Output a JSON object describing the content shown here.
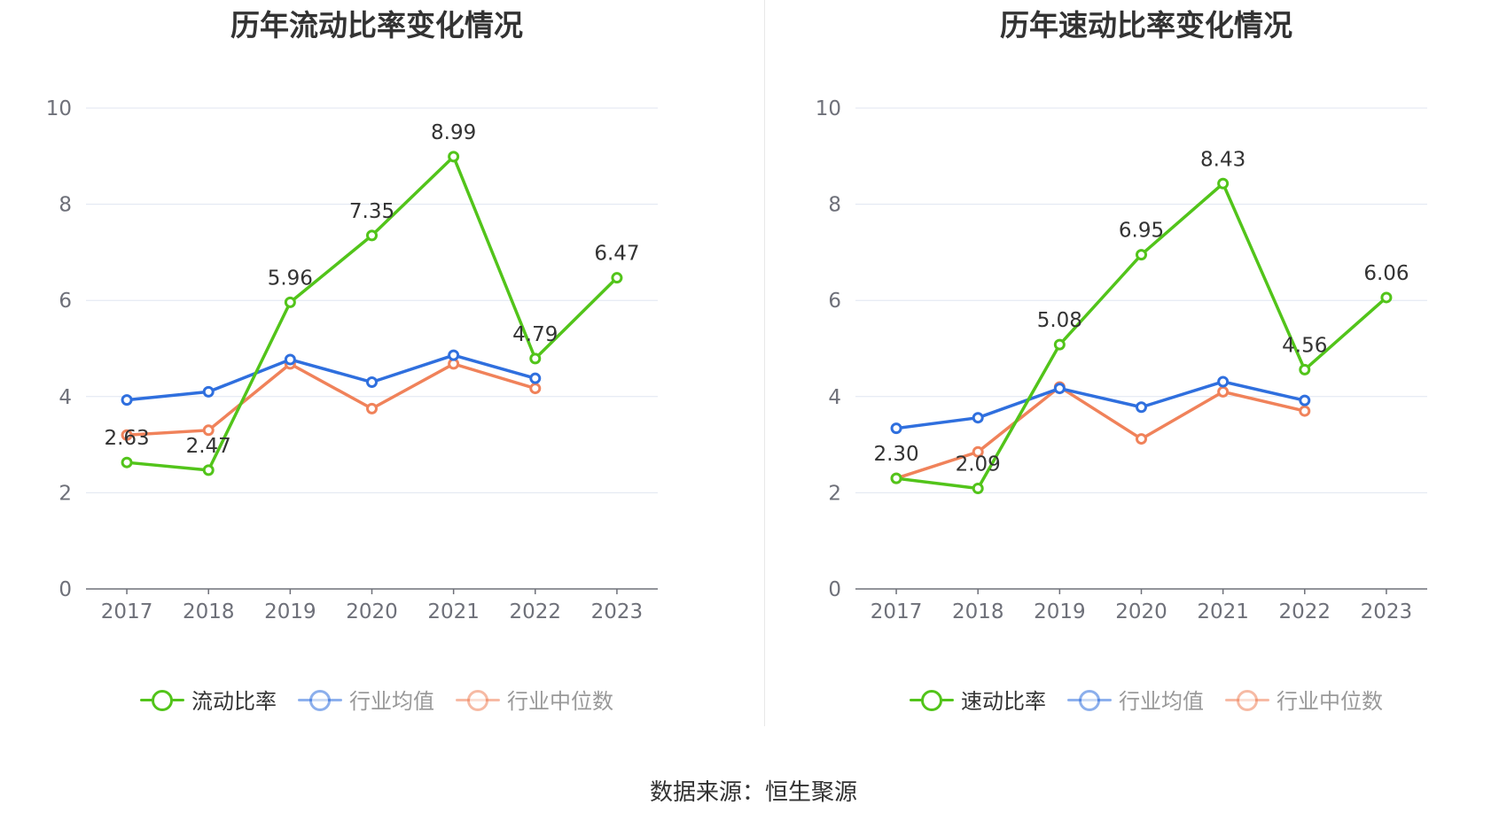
{
  "chart_data": [
    {
      "type": "line",
      "title": "历年流动比率变化情况",
      "categories": [
        "2017",
        "2018",
        "2019",
        "2020",
        "2021",
        "2022",
        "2023"
      ],
      "ylim": [
        0,
        10
      ],
      "yticks": [
        0,
        2,
        4,
        6,
        8,
        10
      ],
      "grid": true,
      "legend_position": "bottom",
      "series": [
        {
          "name": "流动比率",
          "color": "#52c41a",
          "values": [
            2.63,
            2.47,
            5.96,
            7.35,
            8.99,
            4.79,
            6.47
          ],
          "labels": [
            "2.63",
            "2.47",
            "5.96",
            "7.35",
            "8.99",
            "4.79",
            "6.47"
          ]
        },
        {
          "name": "行业均值",
          "color": "#2f6fde",
          "values": [
            3.93,
            4.1,
            4.77,
            4.3,
            4.86,
            4.38,
            null
          ]
        },
        {
          "name": "行业中位数",
          "color": "#f0825a",
          "values": [
            3.2,
            3.3,
            4.68,
            3.75,
            4.68,
            4.17,
            null
          ]
        }
      ]
    },
    {
      "type": "line",
      "title": "历年速动比率变化情况",
      "categories": [
        "2017",
        "2018",
        "2019",
        "2020",
        "2021",
        "2022",
        "2023"
      ],
      "ylim": [
        0,
        10
      ],
      "yticks": [
        0,
        2,
        4,
        6,
        8,
        10
      ],
      "grid": true,
      "legend_position": "bottom",
      "series": [
        {
          "name": "速动比率",
          "color": "#52c41a",
          "values": [
            2.3,
            2.09,
            5.08,
            6.95,
            8.43,
            4.56,
            6.06
          ],
          "labels": [
            "2.30",
            "2.09",
            "5.08",
            "6.95",
            "8.43",
            "4.56",
            "6.06"
          ]
        },
        {
          "name": "行业均值",
          "color": "#2f6fde",
          "values": [
            3.34,
            3.56,
            4.17,
            3.78,
            4.31,
            3.92,
            null
          ]
        },
        {
          "name": "行业中位数",
          "color": "#f0825a",
          "values": [
            2.3,
            2.85,
            4.2,
            3.12,
            4.1,
            3.7,
            null
          ]
        }
      ]
    }
  ],
  "legend_colors": {
    "inactive_text": "#999999",
    "active_text": "#333333"
  },
  "footer": {
    "source": "数据来源：恒生聚源"
  }
}
